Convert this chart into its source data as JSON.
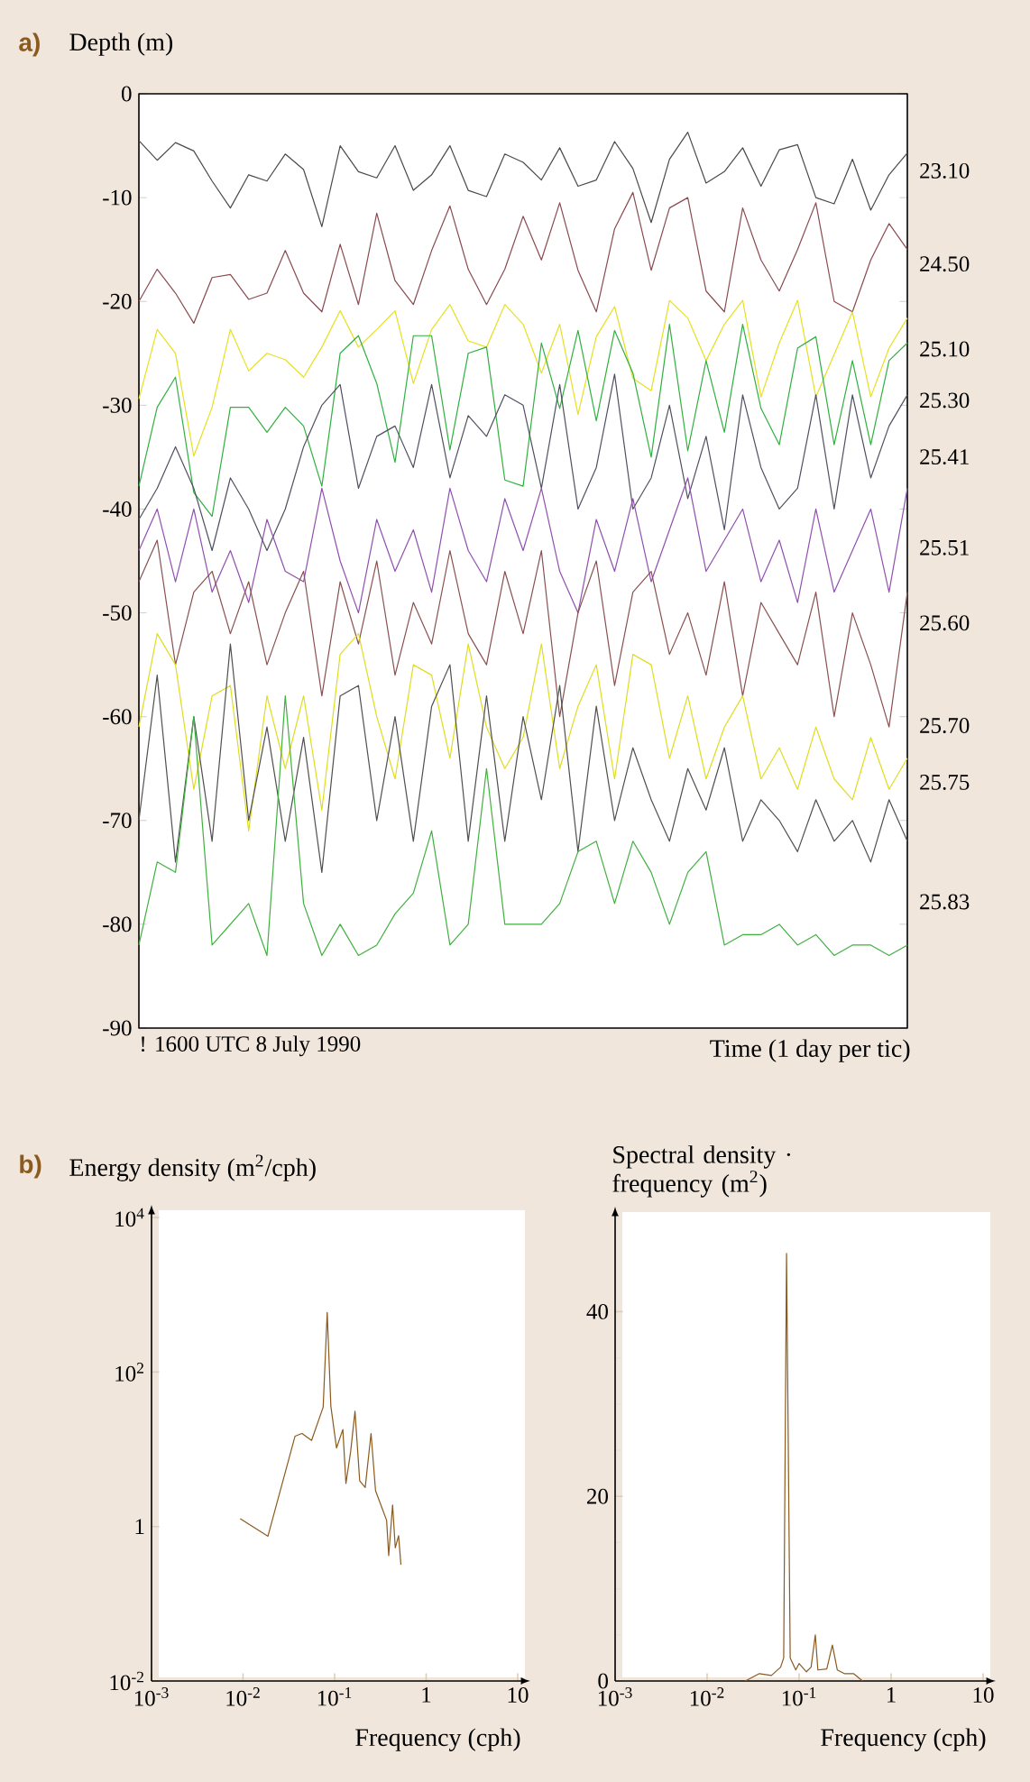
{
  "chart_data": [
    {
      "type": "line",
      "title": "a)",
      "ylabel": "Depth (m)",
      "xlabel": "Time (1 day per tic)",
      "annotations": [
        "! 1600 UTC 8 July 1990"
      ],
      "categories": [
        null,
        null,
        null,
        null,
        null,
        null,
        null,
        null,
        null,
        null,
        null,
        null,
        null,
        null,
        null,
        null,
        null,
        null,
        null,
        null,
        null,
        null,
        null,
        null,
        null,
        null,
        null,
        null,
        null,
        null,
        null,
        null,
        null,
        null,
        null,
        null,
        null,
        null,
        null,
        null,
        null,
        null,
        null
      ],
      "ylim": [
        -90,
        0
      ],
      "yticks": [
        0,
        -10,
        -20,
        -30,
        -40,
        -50,
        -60,
        -70,
        -80,
        -90
      ],
      "series": [
        {
          "name": "23.10",
          "color": "#4a4a4a",
          "values": [
            -4.5,
            -6.4,
            -4.7,
            -5.5,
            -8.4,
            -11,
            -7.8,
            -8.4,
            -5.8,
            -7.3,
            -12.8,
            -5,
            -7.5,
            -8.1,
            -5,
            -9.3,
            -7.8,
            -5,
            -9.3,
            -9.9,
            -5.8,
            -6.6,
            -8.3,
            -5.2,
            -8.9,
            -8.3,
            -4.6,
            -7.2,
            -12.4,
            -6.3,
            -3.7,
            -8.6,
            -7.5,
            -5.2,
            -8.9,
            -5.4,
            -4.9,
            -10,
            -10.6,
            -6.3,
            -11.2,
            -7.8,
            -5.7
          ]
        },
        {
          "name": "24.50",
          "color": "#8a4a50",
          "values": [
            -20,
            -16.9,
            -19.2,
            -22.1,
            -17.7,
            -17.4,
            -19.8,
            -19.2,
            -15.1,
            -19.2,
            -21,
            -14.5,
            -20.3,
            -11.5,
            -18,
            -20.3,
            -15.1,
            -10.8,
            -16.9,
            -20.3,
            -16.9,
            -11.8,
            -16,
            -10.5,
            -17,
            -21,
            -13,
            -9.5,
            -17,
            -11,
            -10,
            -19,
            -21,
            -11,
            -16,
            -19,
            -15,
            -10.5,
            -20,
            -21,
            -16,
            -12.5,
            -15
          ]
        },
        {
          "name": "25.10",
          "color": "#e6e020",
          "values": [
            -29.4,
            -22.7,
            -25,
            -34.9,
            -30.2,
            -22.7,
            -26.7,
            -25,
            -25.6,
            -27.3,
            -24.4,
            -20.9,
            -24.4,
            -22.7,
            -20.9,
            -27.9,
            -22.7,
            -20.3,
            -23.8,
            -24.4,
            -20.3,
            -22.2,
            -26.9,
            -22.2,
            -30.9,
            -23.4,
            -20.5,
            -27.4,
            -28.6,
            -19.9,
            -21.6,
            -25.7,
            -22.2,
            -19.9,
            -29.2,
            -24,
            -19.9,
            -29.2,
            -25.1,
            -21,
            -29.2,
            -24.5,
            -21.6
          ]
        },
        {
          "name": "25.30",
          "color": "#30b040",
          "values": [
            -37.8,
            -30.2,
            -27.3,
            -38.4,
            -40.7,
            -30.2,
            -30.2,
            -32.6,
            -30.2,
            -32,
            -37.8,
            -25,
            -23.3,
            -27.9,
            -35.5,
            -23.3,
            -23.3,
            -34.3,
            -25,
            -24.4,
            -37.2,
            -37.8,
            -24,
            -30.3,
            -22.8,
            -31.5,
            -22.8,
            -26.9,
            -35,
            -22.2,
            -34.4,
            -25.7,
            -32.6,
            -22.2,
            -30.3,
            -33.8,
            -24.5,
            -23.4,
            -33.8,
            -25.7,
            -33.8,
            -25.7,
            -24
          ]
        },
        {
          "name": "25.41",
          "color": "#505060",
          "values": [
            -41,
            -38,
            -34,
            -38,
            -44,
            -37,
            -40,
            -44,
            -40,
            -34,
            -30,
            -28,
            -38,
            -33,
            -32,
            -36,
            -28,
            -37,
            -31,
            -33,
            -29,
            -30,
            -38,
            -28,
            -40,
            -36,
            -27,
            -40,
            -37,
            -30,
            -39,
            -33,
            -42,
            -29,
            -36,
            -40,
            -38,
            -29,
            -40,
            -29,
            -37,
            -32,
            -29
          ]
        },
        {
          "name": "25.51",
          "color": "#9050b0",
          "values": [
            -44,
            -40,
            -47,
            -40,
            -48,
            -44,
            -49,
            -41,
            -46,
            -47,
            -38,
            -45,
            -50,
            -41,
            -46,
            -42,
            -48,
            -38,
            -44,
            -47,
            -39,
            -44,
            -38,
            -46,
            -50,
            -41,
            -46,
            -39,
            -47,
            -42,
            -37,
            -46,
            -43,
            -40,
            -47,
            -43,
            -49,
            -40,
            -48,
            -44,
            -40,
            -48,
            -38
          ]
        },
        {
          "name": "25.60",
          "color": "#8a5050",
          "values": [
            -47,
            -43,
            -55,
            -48,
            -46,
            -52,
            -47,
            -55,
            -50,
            -46,
            -58,
            -47,
            -53,
            -45,
            -56,
            -49,
            -53,
            -44,
            -52,
            -55,
            -46,
            -52,
            -44,
            -60,
            -50,
            -45,
            -57,
            -48,
            -46,
            -54,
            -50,
            -56,
            -47,
            -58,
            -49,
            -52,
            -55,
            -48,
            -60,
            -50,
            -55,
            -61,
            -48
          ]
        },
        {
          "name": "25.70",
          "color": "#e0dc20",
          "values": [
            -61,
            -52,
            -55,
            -67,
            -58,
            -57,
            -71,
            -58,
            -65,
            -58,
            -69,
            -54,
            -52,
            -60,
            -66,
            -55,
            -56,
            -64,
            -53,
            -61,
            -65,
            -62,
            -53,
            -65,
            -59,
            -55,
            -66,
            -54,
            -55,
            -64,
            -58,
            -66,
            -61,
            -58,
            -66,
            -63,
            -67,
            -61,
            -66,
            -68,
            -62,
            -67,
            -64
          ]
        },
        {
          "name": "25.75",
          "color": "#505050",
          "values": [
            -70,
            -56,
            -74,
            -60,
            -72,
            -53,
            -70,
            -61,
            -72,
            -62,
            -75,
            -58,
            -57,
            -70,
            -60,
            -72,
            -59,
            -55,
            -72,
            -58,
            -72,
            -60,
            -68,
            -57,
            -73,
            -59,
            -70,
            -63,
            -68,
            -72,
            -65,
            -69,
            -63,
            -72,
            -68,
            -70,
            -73,
            -68,
            -72,
            -70,
            -74,
            -68,
            -72
          ]
        },
        {
          "name": "25.83",
          "color": "#40b040",
          "values": [
            -82,
            -74,
            -75,
            -60,
            -82,
            -80,
            -78,
            -83,
            -58,
            -78,
            -83,
            -80,
            -83,
            -82,
            -79,
            -77,
            -71,
            -82,
            -80,
            -65,
            -80,
            -80,
            -80,
            -78,
            -73,
            -72,
            -78,
            -72,
            -75,
            -80,
            -75,
            -73,
            -82,
            -81,
            -81,
            -80,
            -82,
            -81,
            -83,
            -82,
            -82,
            -83,
            -82
          ]
        }
      ]
    },
    {
      "type": "line",
      "title": "b)",
      "ylabel": "Energy density (m$^{2}$/cph)",
      "xlabel": "Frequency (cph)",
      "log": "xy",
      "color": "#8b5a1e",
      "xlim": [
        0.001,
        10
      ],
      "ylim": [
        0.01,
        10000
      ],
      "xticks": [
        {
          "value": 0.001,
          "label": "10$^{-3}$"
        },
        {
          "value": 0.01,
          "label": "10$^{-2}$"
        },
        {
          "value": 0.1,
          "label": "10$^{-1}$"
        },
        1,
        10
      ],
      "yticks": [
        {
          "value": 0.01,
          "label": "10$^{-2}$"
        },
        1,
        {
          "value": 100,
          "label": "10$^{2}$"
        },
        {
          "value": 10000,
          "label": "10$^{4}$"
        }
      ],
      "x": [
        0.0093,
        0.0187,
        0.037,
        0.044,
        0.056,
        0.075,
        0.083,
        0.091,
        0.105,
        0.123,
        0.133,
        0.15,
        0.167,
        0.188,
        0.216,
        0.25,
        0.28,
        0.32,
        0.37,
        0.39,
        0.43,
        0.46,
        0.5,
        0.53
      ],
      "values": [
        1.26,
        0.75,
        14.8,
        16,
        13,
        35,
        590,
        36,
        10.4,
        18,
        3.6,
        9.5,
        31,
        3.9,
        3.2,
        16,
        2.9,
        1.9,
        1.2,
        0.42,
        1.9,
        0.53,
        0.76,
        0.32
      ]
    },
    {
      "type": "line",
      "ylabel": "Spectral density · frequency (m$^{2}$)",
      "xlabel": "Frequency (cph)",
      "log": "x",
      "color": "#8b5a1e",
      "xlim": [
        0.001,
        10
      ],
      "ylim": [
        0,
        50
      ],
      "xticks": [
        {
          "value": 0.001,
          "label": "10$^{-3}$"
        },
        {
          "value": 0.01,
          "label": "10$^{-2}$"
        },
        {
          "value": 0.1,
          "label": "10$^{-1}$"
        },
        1,
        10
      ],
      "yticks": [
        0,
        20,
        40
      ],
      "x": [
        0.026,
        0.037,
        0.05,
        0.063,
        0.068,
        0.073,
        0.08,
        0.092,
        0.1,
        0.12,
        0.135,
        0.15,
        0.16,
        0.2,
        0.23,
        0.26,
        0.31,
        0.39,
        0.49
      ],
      "values": [
        0,
        0.8,
        0.6,
        1.5,
        2.5,
        46.3,
        2.5,
        1.2,
        1.9,
        1,
        1.5,
        5,
        1.2,
        1.3,
        3.9,
        1.2,
        0.8,
        0.8,
        0
      ]
    }
  ]
}
